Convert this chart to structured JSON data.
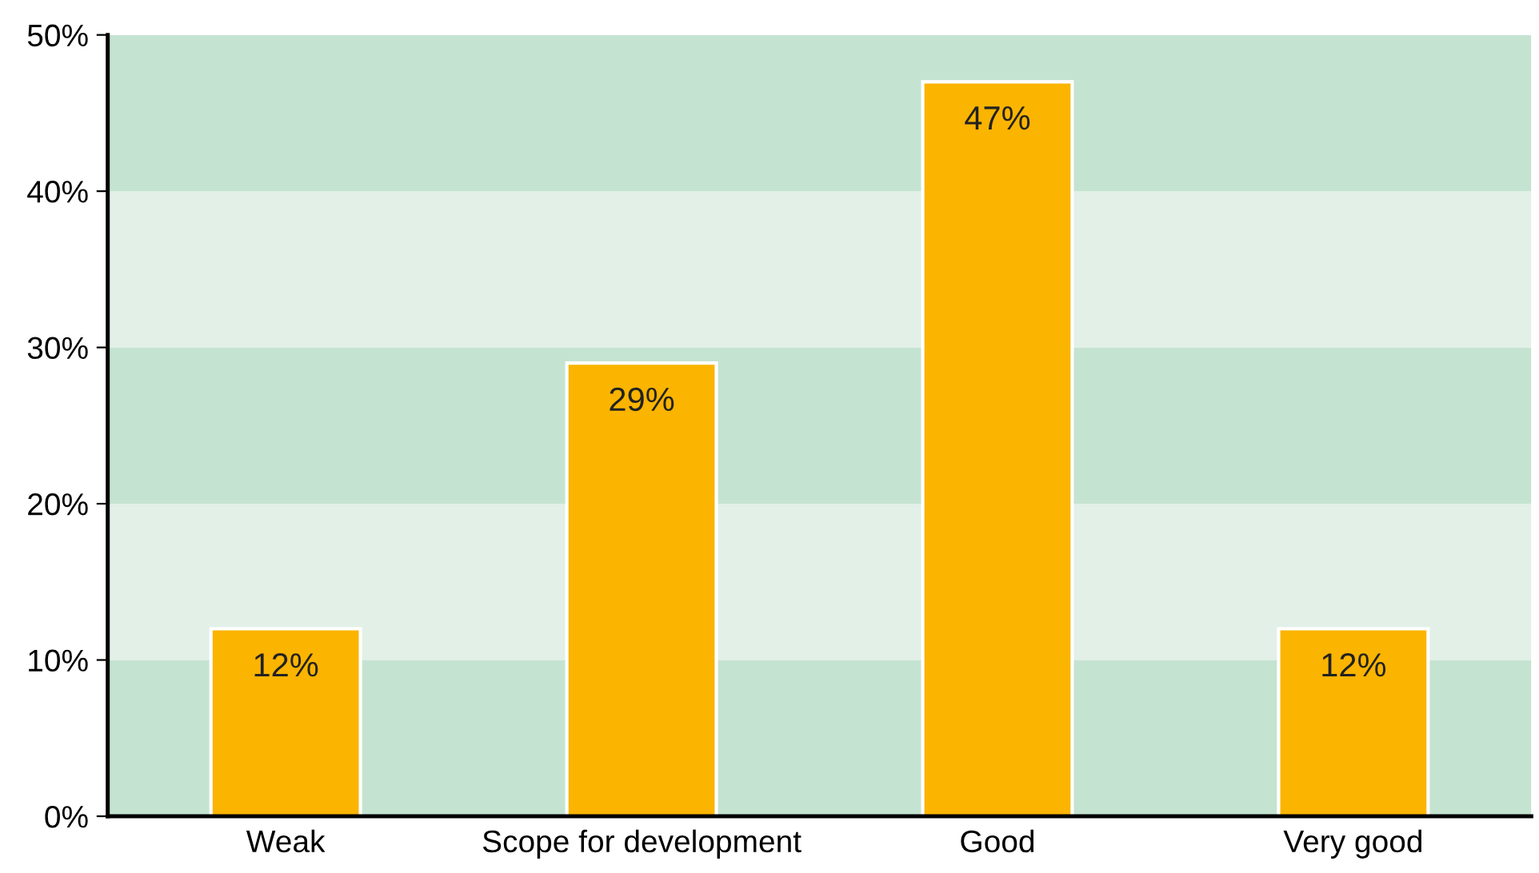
{
  "chart_data": {
    "type": "bar",
    "categories": [
      "Weak",
      "Scope for development",
      "Good",
      "Very good"
    ],
    "values": [
      12,
      29,
      47,
      12
    ],
    "color": "#fbb400",
    "value_labels": [
      "12%",
      "29%",
      "47%",
      "12%"
    ],
    "ylim": [
      0,
      50
    ],
    "yticks": [
      {
        "value": 0,
        "label": "0%"
      },
      {
        "value": 10,
        "label": "10%"
      },
      {
        "value": 20,
        "label": "20%"
      },
      {
        "value": 30,
        "label": "30%"
      },
      {
        "value": 40,
        "label": "40%"
      },
      {
        "value": 50,
        "label": "50%"
      }
    ],
    "bands": [
      {
        "axis": "y",
        "from": 0,
        "to": 10,
        "color": "#c5e3d1"
      },
      {
        "axis": "y",
        "from": 10,
        "to": 20,
        "color": "#e2f0e8"
      },
      {
        "axis": "y",
        "from": 20,
        "to": 30,
        "color": "#c5e3d1"
      },
      {
        "axis": "y",
        "from": 30,
        "to": 40,
        "color": "#e2f0e8"
      },
      {
        "axis": "y",
        "from": 40,
        "to": 50,
        "color": "#c5e3d1"
      }
    ],
    "grid": false,
    "legend": false
  }
}
